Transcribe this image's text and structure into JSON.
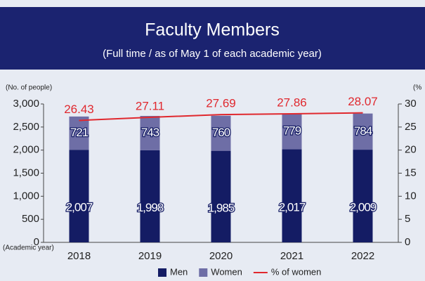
{
  "chart_data": {
    "type": "bar",
    "stacked": true,
    "title": "Faculty Members",
    "subtitle": "(Full time / as of May 1 of each academic year)",
    "ylabel": "(No. of people)",
    "y2label": "(%",
    "xlabel": "(Academic year)",
    "categories": [
      "2018",
      "2019",
      "2020",
      "2021",
      "2022"
    ],
    "series": [
      {
        "name": "Men",
        "color": "#141c64",
        "values": [
          2007,
          1998,
          1985,
          2017,
          2009
        ],
        "value_labels": [
          "2,007",
          "1,998",
          "1,985",
          "2,017",
          "2,009"
        ]
      },
      {
        "name": "Women",
        "color": "#6e6ea6",
        "values": [
          721,
          743,
          760,
          779,
          784
        ]
      },
      {
        "name": "% of women",
        "type": "line",
        "axis": "y2",
        "color": "#e0282e",
        "values": [
          26.43,
          27.11,
          27.69,
          27.86,
          28.07
        ]
      }
    ],
    "ylim": [
      0,
      3000
    ],
    "yticks": [
      0,
      500,
      {
        "value": 1000,
        "label": "1,000"
      },
      {
        "value": 1500,
        "label": "1,500"
      },
      {
        "value": 2000,
        "label": "2,000"
      },
      {
        "value": 2500,
        "label": "2,500"
      },
      {
        "value": 3000,
        "label": "3,000"
      }
    ],
    "y2lim": [
      0,
      30
    ],
    "y2ticks": [
      0,
      5,
      10,
      15,
      20,
      25,
      30
    ],
    "grid": false
  }
}
